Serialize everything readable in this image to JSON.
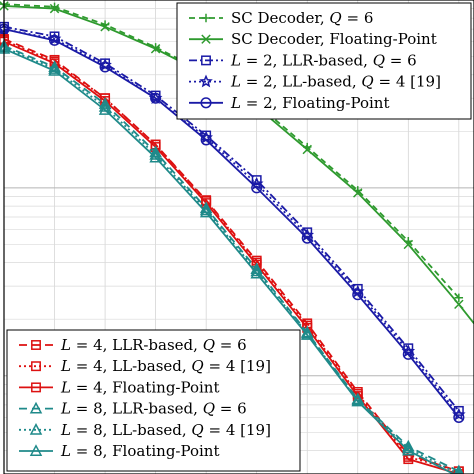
{
  "chart_data": {
    "type": "line",
    "title": "",
    "xlabel": "",
    "ylabel": "",
    "y_scale": "log",
    "xlim": [
      0,
      9.3
    ],
    "ylim": [
      0.003,
      1.0
    ],
    "grid": true,
    "legends": [
      {
        "placement": "top-right",
        "entries": [
          "sc_q6",
          "sc_fp",
          "l2_llr",
          "l2_ll",
          "l2_fp"
        ]
      },
      {
        "placement": "bottom-left",
        "entries": [
          "l4_llr",
          "l4_ll",
          "l4_fp",
          "l8_llr",
          "l8_ll",
          "l8_fp"
        ]
      }
    ],
    "series": [
      {
        "id": "sc_q6",
        "name": "SC Decoder, Q = 6",
        "color": "#2e9a2e",
        "dash": "6,4",
        "marker": "plus",
        "x": [
          0,
          1,
          2,
          3,
          4,
          5,
          6,
          7,
          8,
          9
        ],
        "y": [
          0.95,
          0.92,
          0.74,
          0.56,
          0.41,
          0.28,
          0.165,
          0.097,
          0.052,
          0.026
        ]
      },
      {
        "id": "sc_fp",
        "name": "SC Decoder, Floating-Point",
        "color": "#2e9a2e",
        "dash": "",
        "marker": "x",
        "x": [
          0,
          1,
          2,
          3,
          4,
          5,
          6,
          7,
          8,
          9,
          9.3
        ],
        "y": [
          0.93,
          0.9,
          0.72,
          0.55,
          0.4,
          0.27,
          0.16,
          0.094,
          0.05,
          0.024,
          0.019
        ]
      },
      {
        "id": "l2_llr",
        "name": "L = 2, LLR-based, Q = 6",
        "color": "#1a1aa6",
        "dash": "8,3,2,3",
        "marker": "square",
        "x": [
          0,
          1,
          2,
          3,
          4,
          5,
          6,
          7,
          8,
          9
        ],
        "y": [
          0.72,
          0.64,
          0.46,
          0.31,
          0.19,
          0.11,
          0.058,
          0.029,
          0.014,
          0.0065
        ]
      },
      {
        "id": "l2_ll",
        "name": "L = 2, LL-based, Q = 4 [19]",
        "color": "#1a1aa6",
        "dash": "2,3",
        "marker": "star",
        "x": [
          0,
          1,
          2,
          3,
          4,
          5,
          6,
          7,
          8,
          9
        ],
        "y": [
          0.7,
          0.62,
          0.45,
          0.3,
          0.185,
          0.105,
          0.056,
          0.028,
          0.0135,
          0.0062
        ]
      },
      {
        "id": "l2_fp",
        "name": "L = 2, Floating-Point",
        "color": "#1a1aa6",
        "dash": "",
        "marker": "circle",
        "x": [
          0,
          1,
          2,
          3,
          4,
          5,
          6,
          7,
          8,
          9
        ],
        "y": [
          0.7,
          0.61,
          0.44,
          0.3,
          0.18,
          0.1,
          0.054,
          0.027,
          0.013,
          0.006
        ]
      },
      {
        "id": "l4_llr",
        "name": "L = 4, LLR-based, Q = 6",
        "color": "#dd1111",
        "dash": "8,5",
        "marker": "square",
        "x": [
          0,
          1,
          2,
          3,
          4,
          5,
          6,
          7,
          8,
          9
        ],
        "y": [
          0.62,
          0.48,
          0.3,
          0.17,
          0.086,
          0.041,
          0.019,
          0.0082,
          0.0038,
          0.0031
        ]
      },
      {
        "id": "l4_ll",
        "name": "L = 4, LL-based, Q = 4 [19]",
        "color": "#dd1111",
        "dash": "2,3",
        "marker": "square",
        "x": [
          0,
          1,
          2,
          3,
          4,
          5,
          6,
          7,
          8,
          9
        ],
        "y": [
          0.61,
          0.47,
          0.3,
          0.17,
          0.085,
          0.04,
          0.0185,
          0.008,
          0.0037,
          0.0031
        ]
      },
      {
        "id": "l4_fp",
        "name": "L = 4, Floating-Point",
        "color": "#dd1111",
        "dash": "",
        "marker": "square",
        "x": [
          0,
          1,
          2,
          3,
          4,
          5,
          6,
          7,
          8,
          9
        ],
        "y": [
          0.6,
          0.46,
          0.29,
          0.165,
          0.083,
          0.039,
          0.018,
          0.0078,
          0.0036,
          0.003
        ]
      },
      {
        "id": "l8_llr",
        "name": "L = 8, LLR-based, Q = 6",
        "color": "#1f8a8a",
        "dash": "8,5",
        "marker": "triangle",
        "x": [
          0,
          1,
          2,
          3,
          4,
          5,
          6,
          7,
          8,
          9
        ],
        "y": [
          0.57,
          0.44,
          0.28,
          0.155,
          0.078,
          0.037,
          0.017,
          0.0075,
          0.0042,
          0.0031
        ]
      },
      {
        "id": "l8_ll",
        "name": "L = 8, LL-based, Q = 4 [19]",
        "color": "#1f8a8a",
        "dash": "2,3",
        "marker": "triangle",
        "x": [
          0,
          1,
          2,
          3,
          4,
          5,
          6,
          7,
          8,
          9
        ],
        "y": [
          0.56,
          0.43,
          0.27,
          0.15,
          0.076,
          0.036,
          0.0168,
          0.0074,
          0.0041,
          0.003
        ]
      },
      {
        "id": "l8_fp",
        "name": "L = 8, Floating-Point",
        "color": "#1f8a8a",
        "dash": "",
        "marker": "triangle",
        "x": [
          0,
          1,
          2,
          3,
          4,
          5,
          6,
          7,
          8,
          9
        ],
        "y": [
          0.55,
          0.42,
          0.26,
          0.145,
          0.074,
          0.035,
          0.0165,
          0.0073,
          0.004,
          0.0029
        ]
      }
    ]
  }
}
